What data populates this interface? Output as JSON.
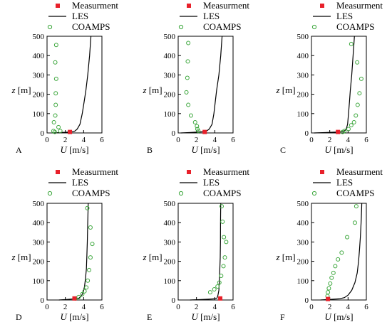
{
  "legend": {
    "measurement": "Measurment",
    "les": "LES",
    "coamps": "COAMPS"
  },
  "axes": {
    "ylabel_var": "z",
    "ylabel_unit": " [m]",
    "xlabel_var": "U",
    "xlabel_unit": " [m/s]"
  },
  "colors": {
    "measurement": "#e8202a",
    "les": "#000000",
    "coamps": "#3aa63a"
  },
  "chart_data": [
    {
      "type": "line",
      "panel_label": "A",
      "xlim": [
        0,
        6
      ],
      "ylim": [
        0,
        500
      ],
      "xticks": [
        "0",
        "2",
        "4",
        "6"
      ],
      "yticks": [
        "0",
        "100",
        "200",
        "300",
        "400",
        "500"
      ],
      "legend_position": "top",
      "series": [
        {
          "name": "LES",
          "kind": "line",
          "x": [
            0.7,
            1.5,
            2.3,
            2.8,
            3.05,
            3.3,
            3.6,
            3.85,
            4.05,
            4.25,
            4.45,
            4.65,
            4.8
          ],
          "y": [
            0,
            2,
            4,
            6,
            10,
            20,
            45,
            100,
            160,
            220,
            300,
            400,
            500
          ]
        },
        {
          "name": "COAMPS",
          "kind": "scatter",
          "x": [
            1.0,
            0.9,
            1.0,
            0.95,
            0.95,
            0.9,
            0.75,
            0.7,
            0.85,
            1.25,
            1.45
          ],
          "y": [
            455,
            365,
            280,
            205,
            145,
            90,
            55,
            10,
            5,
            30,
            10
          ]
        },
        {
          "name": "Measurment",
          "kind": "scatter",
          "x": [
            2.5
          ],
          "y": [
            5
          ]
        }
      ]
    },
    {
      "type": "line",
      "panel_label": "B",
      "xlim": [
        0,
        6
      ],
      "ylim": [
        0,
        500
      ],
      "xticks": [
        "0",
        "2",
        "4",
        "6"
      ],
      "yticks": [
        "0",
        "100",
        "200",
        "300",
        "400",
        "500"
      ],
      "legend_position": "top",
      "series": [
        {
          "name": "LES",
          "kind": "line",
          "x": [
            0.3,
            1.2,
            2.0,
            2.7,
            3.1,
            3.4,
            3.7,
            3.9,
            4.05,
            4.2,
            4.45,
            4.65,
            4.8
          ],
          "y": [
            0,
            2,
            4,
            6,
            10,
            20,
            45,
            100,
            160,
            220,
            300,
            400,
            500
          ]
        },
        {
          "name": "COAMPS",
          "kind": "scatter",
          "x": [
            1.1,
            1.05,
            1.0,
            0.9,
            1.1,
            1.4,
            1.85,
            2.05,
            2.1,
            2.2
          ],
          "y": [
            465,
            370,
            285,
            210,
            145,
            90,
            55,
            35,
            20,
            10
          ]
        },
        {
          "name": "Measurment",
          "kind": "scatter",
          "x": [
            2.9
          ],
          "y": [
            5
          ]
        }
      ]
    },
    {
      "type": "line",
      "panel_label": "C",
      "xlim": [
        0,
        6
      ],
      "ylim": [
        0,
        500
      ],
      "xticks": [
        "0",
        "2",
        "4",
        "6"
      ],
      "yticks": [
        "0",
        "100",
        "200",
        "300",
        "400",
        "500"
      ],
      "legend_position": "top",
      "series": [
        {
          "name": "LES",
          "kind": "line",
          "x": [
            0.3,
            1.5,
            2.6,
            3.3,
            3.6,
            3.8,
            3.95,
            4.05,
            4.15,
            4.25,
            4.4,
            4.55,
            4.7
          ],
          "y": [
            0,
            2,
            4,
            6,
            10,
            20,
            45,
            100,
            160,
            220,
            300,
            400,
            500
          ]
        },
        {
          "name": "COAMPS",
          "kind": "scatter",
          "x": [
            4.35,
            5.0,
            5.45,
            5.25,
            5.05,
            4.85,
            4.65,
            4.35,
            4.05,
            3.6,
            3.4
          ],
          "y": [
            460,
            365,
            280,
            205,
            145,
            90,
            55,
            40,
            20,
            10,
            5
          ]
        },
        {
          "name": "Measurment",
          "kind": "scatter",
          "x": [
            2.9
          ],
          "y": [
            5
          ]
        }
      ]
    },
    {
      "type": "line",
      "panel_label": "D",
      "xlim": [
        0,
        6
      ],
      "ylim": [
        0,
        500
      ],
      "xticks": [
        "0",
        "2",
        "4",
        "6"
      ],
      "yticks": [
        "0",
        "100",
        "200",
        "300",
        "400",
        "500"
      ],
      "legend_position": "top",
      "series": [
        {
          "name": "LES",
          "kind": "line",
          "x": [
            1.3,
            2.2,
            3.0,
            3.5,
            3.75,
            3.95,
            4.1,
            4.2,
            4.3,
            4.35,
            4.4,
            4.45,
            4.5
          ],
          "y": [
            0,
            3,
            6,
            10,
            20,
            40,
            70,
            110,
            160,
            220,
            300,
            400,
            500
          ]
        },
        {
          "name": "COAMPS",
          "kind": "scatter",
          "x": [
            4.4,
            4.75,
            4.95,
            4.75,
            4.6,
            4.45,
            4.3,
            4.1,
            3.85,
            3.45,
            3.1
          ],
          "y": [
            475,
            375,
            290,
            220,
            155,
            100,
            65,
            45,
            30,
            15,
            8
          ]
        },
        {
          "name": "Measurment",
          "kind": "scatter",
          "x": [
            3.0
          ],
          "y": [
            8
          ]
        }
      ]
    },
    {
      "type": "line",
      "panel_label": "E",
      "xlim": [
        0,
        6
      ],
      "ylim": [
        0,
        500
      ],
      "xticks": [
        "0",
        "2",
        "4",
        "6"
      ],
      "yticks": [
        "0",
        "100",
        "200",
        "300",
        "400",
        "500"
      ],
      "legend_position": "top",
      "series": [
        {
          "name": "LES",
          "kind": "line",
          "x": [
            1.3,
            2.3,
            3.3,
            3.9,
            4.25,
            4.35,
            4.45,
            4.5,
            4.55,
            4.6,
            4.62,
            4.63,
            4.65
          ],
          "y": [
            0,
            2,
            4,
            6,
            10,
            25,
            50,
            100,
            160,
            220,
            300,
            400,
            500
          ]
        },
        {
          "name": "COAMPS",
          "kind": "scatter",
          "x": [
            4.75,
            4.85,
            5.0,
            5.25,
            5.1,
            4.95,
            4.7,
            4.5,
            4.3,
            3.95,
            3.5
          ],
          "y": [
            485,
            405,
            325,
            300,
            220,
            175,
            125,
            90,
            70,
            55,
            40
          ]
        },
        {
          "name": "Measurment",
          "kind": "scatter",
          "x": [
            4.6
          ],
          "y": [
            8
          ]
        }
      ]
    },
    {
      "type": "line",
      "panel_label": "F",
      "xlim": [
        0,
        6
      ],
      "ylim": [
        0,
        500
      ],
      "xticks": [
        "0",
        "2",
        "4",
        "6"
      ],
      "yticks": [
        "0",
        "100",
        "200",
        "300",
        "400",
        "500"
      ],
      "legend_position": "top",
      "series": [
        {
          "name": "LES",
          "kind": "line",
          "x": [
            1.0,
            2.0,
            3.0,
            3.6,
            4.0,
            4.4,
            4.75,
            5.0,
            5.15,
            5.25,
            5.35,
            5.45,
            5.5
          ],
          "y": [
            0,
            3,
            6,
            12,
            25,
            50,
            90,
            140,
            200,
            260,
            330,
            420,
            500
          ]
        },
        {
          "name": "COAMPS",
          "kind": "scatter",
          "x": [
            4.9,
            4.75,
            3.9,
            3.3,
            2.9,
            2.6,
            2.4,
            2.2,
            2.05,
            1.9,
            1.8,
            1.75
          ],
          "y": [
            485,
            400,
            325,
            245,
            210,
            175,
            140,
            115,
            85,
            60,
            40,
            20
          ]
        },
        {
          "name": "Measurment",
          "kind": "scatter",
          "x": [
            1.8
          ],
          "y": [
            5
          ]
        }
      ]
    }
  ]
}
